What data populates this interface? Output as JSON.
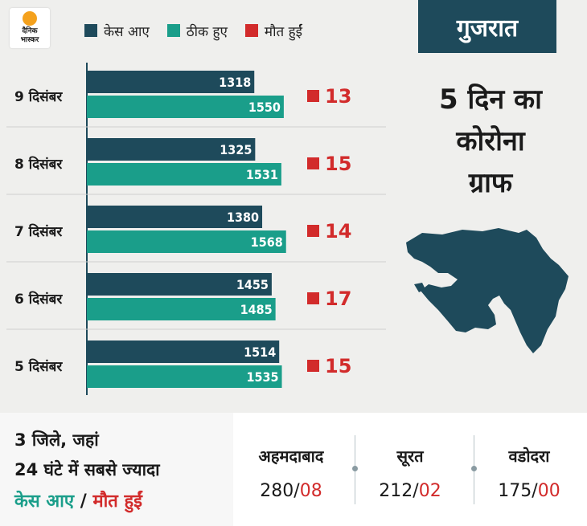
{
  "logo": {
    "line1": "दैनिक",
    "line2": "भास्कर"
  },
  "legend": [
    {
      "label": "केस आए",
      "color": "#1e4a5b"
    },
    {
      "label": "ठीक हुए",
      "color": "#1a9e8a"
    },
    {
      "label": "मौत हुईं",
      "color": "#d22b2b"
    }
  ],
  "state": "गुजरात",
  "side_title": [
    "5 दिन का",
    "कोरोना",
    "ग्राफ"
  ],
  "chart_data": {
    "type": "bar",
    "orientation": "horizontal",
    "categories": [
      "9 दिसंबर",
      "8 दिसंबर",
      "7 दिसंबर",
      "6 दिसंबर",
      "5 दिसंबर"
    ],
    "series": [
      {
        "name": "केस आए",
        "color": "#1e4a5b",
        "values": [
          1318,
          1325,
          1380,
          1455,
          1514
        ]
      },
      {
        "name": "ठीक हुए",
        "color": "#1a9e8a",
        "values": [
          1550,
          1531,
          1568,
          1485,
          1535
        ]
      },
      {
        "name": "मौत हुईं",
        "color": "#d22b2b",
        "values": [
          13,
          15,
          14,
          17,
          15
        ]
      }
    ]
  },
  "bottom": {
    "line1": "3 जिले, जहां",
    "line2": "24 घंटे में सबसे ज्यादा",
    "line3_a": "केस आए",
    "line3_sep": " / ",
    "line3_b": "मौत हुईं",
    "cities": [
      {
        "name": "अहमदाबाद",
        "cases": "280",
        "deaths": "08"
      },
      {
        "name": "सूरत",
        "cases": "212",
        "deaths": "02"
      },
      {
        "name": "वडोदरा",
        "cases": "175",
        "deaths": "00"
      }
    ]
  }
}
